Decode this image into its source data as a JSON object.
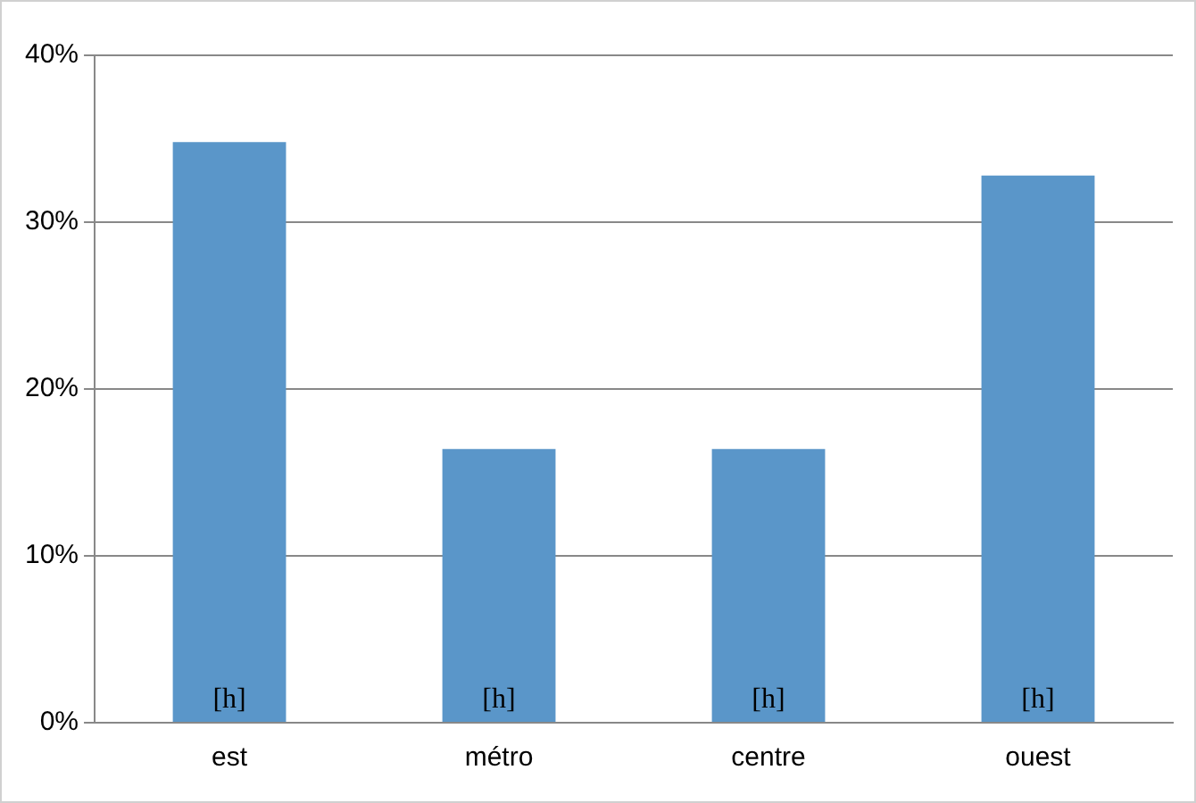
{
  "chart_data": {
    "type": "bar",
    "categories": [
      "est",
      "métro",
      "centre",
      "ouest"
    ],
    "values": [
      34.8,
      16.4,
      16.4,
      32.8
    ],
    "color": "#5a96c9",
    "value_labels": [
      "[h]",
      "[h]",
      "[h]",
      "[h]"
    ],
    "ylim": [
      0,
      40
    ],
    "yticks": [
      {
        "value": 0,
        "label": "0%"
      },
      {
        "value": 10,
        "label": "10%"
      },
      {
        "value": 20,
        "label": "20%"
      },
      {
        "value": 30,
        "label": "30%"
      },
      {
        "value": 40,
        "label": "40%"
      }
    ],
    "grid": "y",
    "legend": false
  }
}
